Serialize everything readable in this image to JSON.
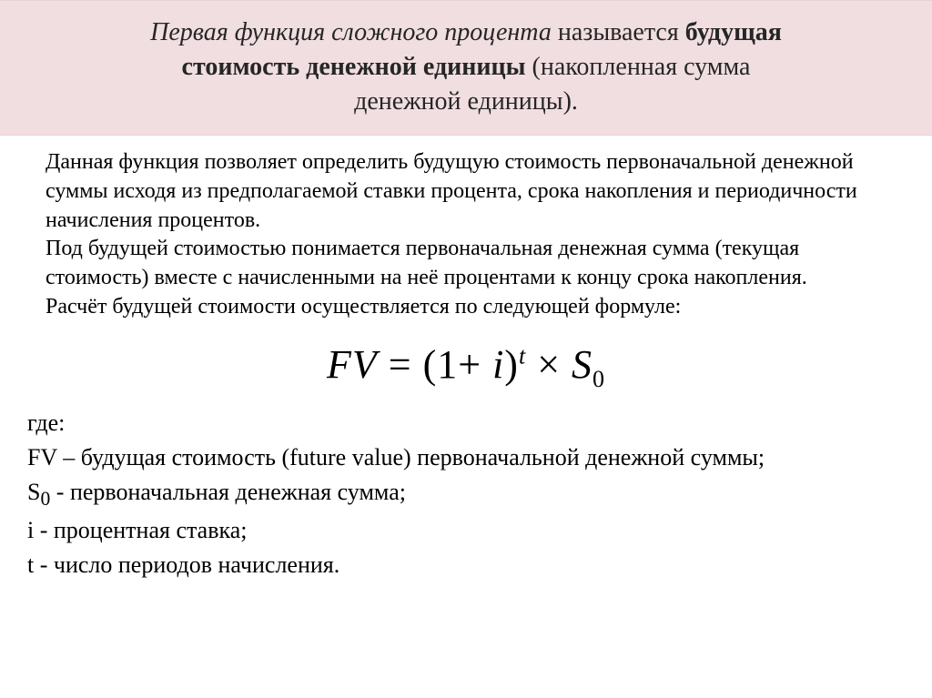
{
  "header": {
    "line1_italic": "Первая функция сложного процента",
    "line1_plain": " называется ",
    "line1_bold": " будущая",
    "line2_bold": "стоимость денежной единицы",
    "line2_plain": " (накопленная  сумма",
    "line3_plain": "денежной единицы)."
  },
  "body": {
    "p1": "Данная функция позволяет определить будущую стоимость первоначальной денежной суммы исходя из предполагаемой ставки процента, срока накопления и периодичности начисления процентов.",
    "p2": "Под будущей стоимостью понимается первоначальная денежная сумма (текущая стоимость) вместе с начисленными на неё процентами к концу срока накопления.",
    "p3": "Расчёт будущей стоимости осуществляется по следующей формуле:"
  },
  "formula": {
    "lhs": "FV",
    "eq": " = ",
    "open": "(1",
    "plus": "+",
    "i": " i",
    "close": ")",
    "exp": "t",
    "times": " × ",
    "S": "S",
    "sub0": "0"
  },
  "defs": {
    "where": " где:",
    "d1": "FV –  будущая стоимость (future value) первоначальной денежной суммы;",
    "d2a": "S",
    "d2sub": "0",
    "d2b": "  - первоначальная денежная сумма;",
    "d3": "i   -  процентная ставка;",
    "d4": "t  -  число периодов начисления."
  },
  "colors": {
    "header_bg": "#f1dee1",
    "text": "#000000",
    "header_text": "#262626"
  }
}
